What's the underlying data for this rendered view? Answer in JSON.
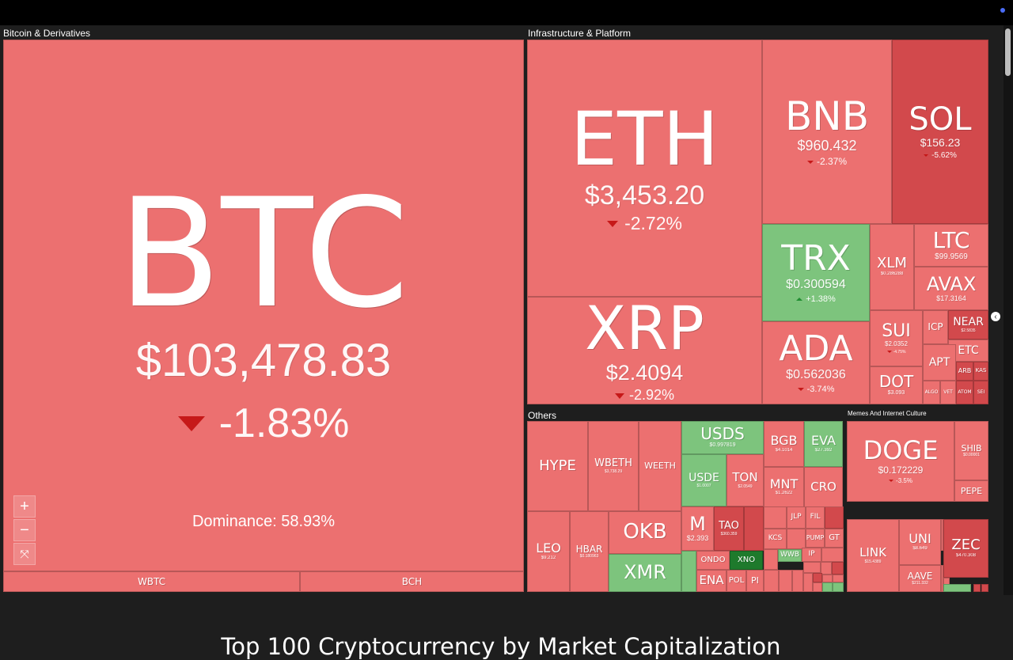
{
  "page": {
    "title": "Top 100 Cryptocurrency by Market Capitalization",
    "dominance_label": "Dominance: 58.93%"
  },
  "colors": {
    "background": "#1e1e1e",
    "down": "#ec7070",
    "down_strong": "#d2494c",
    "up": "#7dc47d",
    "up_strong": "#1e7a2c",
    "arrow_down": "#c41414",
    "arrow_up": "#1c8a2e"
  },
  "controls": {
    "zoom_in": "+",
    "zoom_out": "−",
    "reset": "⤧",
    "collapse": "‹"
  },
  "chart_data": {
    "type": "heatmap",
    "title": "",
    "metric": "market cap sized tiles, colored by 24h change",
    "sectors": [
      {
        "name": "Bitcoin & Derivatives",
        "items": [
          {
            "symbol": "BTC",
            "price": "$103,478.83",
            "change": "-1.83%",
            "value": -1.83
          },
          {
            "symbol": "WBTC",
            "price": "",
            "change": "",
            "value": null
          },
          {
            "symbol": "BCH",
            "price": "",
            "change": "",
            "value": null
          }
        ]
      },
      {
        "name": "Infrastructure & Platform",
        "items": [
          {
            "symbol": "ETH",
            "price": "$3,453.20",
            "change": "-2.72%",
            "value": -2.72
          },
          {
            "symbol": "XRP",
            "price": "$2.4094",
            "change": "-2.92%",
            "value": -2.92
          },
          {
            "symbol": "BNB",
            "price": "$960.432",
            "change": "-2.37%",
            "value": -2.37
          },
          {
            "symbol": "SOL",
            "price": "$156.23",
            "change": "-5.62%",
            "value": -5.62
          },
          {
            "symbol": "TRX",
            "price": "$0.300594",
            "change": "+1.38%",
            "value": 1.38
          },
          {
            "symbol": "ADA",
            "price": "$0.562036",
            "change": "-3.74%",
            "value": -3.74
          },
          {
            "symbol": "XLM",
            "price": "$0.286288",
            "change": "",
            "value": null
          },
          {
            "symbol": "LTC",
            "price": "$99.9569",
            "change": "",
            "value": null
          },
          {
            "symbol": "AVAX",
            "price": "$17.3164",
            "change": "",
            "value": null
          },
          {
            "symbol": "SUI",
            "price": "$2.0352",
            "change": "-4.75%",
            "value": -4.75
          },
          {
            "symbol": "ICP",
            "price": "",
            "change": "",
            "value": null
          },
          {
            "symbol": "NEAR",
            "price": "$2.5835",
            "change": "",
            "value": null
          },
          {
            "symbol": "ETC",
            "price": "",
            "change": "",
            "value": null
          },
          {
            "symbol": "DOT",
            "price": "$3.093",
            "change": "",
            "value": null
          },
          {
            "symbol": "APT",
            "price": "",
            "change": "",
            "value": null
          },
          {
            "symbol": "ARB",
            "price": "",
            "change": "",
            "value": null
          },
          {
            "symbol": "KAS",
            "price": "",
            "change": "",
            "value": null
          },
          {
            "symbol": "ALGO",
            "price": "",
            "change": "",
            "value": null
          },
          {
            "symbol": "VET",
            "price": "",
            "change": "",
            "value": null
          },
          {
            "symbol": "ATOM",
            "price": "",
            "change": "",
            "value": null
          },
          {
            "symbol": "SEI",
            "price": "",
            "change": "",
            "value": null
          }
        ]
      },
      {
        "name": "Others",
        "items": [
          {
            "symbol": "HYPE",
            "price": "",
            "change": "",
            "value": null
          },
          {
            "symbol": "WBETH",
            "price": "$3,738.29",
            "change": "",
            "value": null
          },
          {
            "symbol": "WEETH",
            "price": "",
            "change": "",
            "value": null
          },
          {
            "symbol": "USDS",
            "price": "$0.997819",
            "change": "",
            "value": null
          },
          {
            "symbol": "BGB",
            "price": "$4.1014",
            "change": "",
            "value": null
          },
          {
            "symbol": "EVA",
            "price": "$27.392",
            "change": "",
            "value": null
          },
          {
            "symbol": "USDE",
            "price": "$1.0007",
            "change": "",
            "value": null
          },
          {
            "symbol": "TON",
            "price": "$2.0549",
            "change": "",
            "value": null
          },
          {
            "symbol": "MNT",
            "price": "$1.2622",
            "change": "",
            "value": null
          },
          {
            "symbol": "CRO",
            "price": "",
            "change": "",
            "value": null
          },
          {
            "symbol": "LEO",
            "price": "$9.212",
            "change": "",
            "value": null
          },
          {
            "symbol": "HBAR",
            "price": "$0.180963",
            "change": "",
            "value": null
          },
          {
            "symbol": "OKB",
            "price": "",
            "change": "",
            "value": null
          },
          {
            "symbol": "XMR",
            "price": "",
            "change": "",
            "value": null
          },
          {
            "symbol": "M",
            "price": "$2.393",
            "change": "",
            "value": null
          },
          {
            "symbol": "TAO",
            "price": "$360.359",
            "change": "",
            "value": null
          },
          {
            "symbol": "ONDO",
            "price": "",
            "change": "",
            "value": null
          },
          {
            "symbol": "XNO",
            "price": "",
            "change": "",
            "value": null
          },
          {
            "symbol": "ENA",
            "price": "",
            "change": "",
            "value": null
          },
          {
            "symbol": "POL",
            "price": "",
            "change": "",
            "value": null
          },
          {
            "symbol": "PI",
            "price": "",
            "change": "",
            "value": null
          },
          {
            "symbol": "KCS",
            "price": "",
            "change": "",
            "value": null
          },
          {
            "symbol": "JLP",
            "price": "",
            "change": "",
            "value": null
          },
          {
            "symbol": "FIL",
            "price": "",
            "change": "",
            "value": null
          },
          {
            "symbol": "WWB",
            "price": "",
            "change": "",
            "value": null
          },
          {
            "symbol": "PUMP",
            "price": "",
            "change": "",
            "value": null
          },
          {
            "symbol": "GT",
            "price": "",
            "change": "",
            "value": null
          },
          {
            "symbol": "IP",
            "price": "",
            "change": "",
            "value": null
          }
        ]
      },
      {
        "name": "Memes And Internet Culture",
        "items": [
          {
            "symbol": "DOGE",
            "price": "$0.172229",
            "change": "-3.5%",
            "value": -3.5
          },
          {
            "symbol": "SHIB",
            "price": "$0.00001",
            "change": "",
            "value": null
          },
          {
            "symbol": "PEPE",
            "price": "",
            "change": "",
            "value": null
          },
          {
            "symbol": "LINK",
            "price": "$15.4389",
            "change": "",
            "value": null
          },
          {
            "symbol": "UNI",
            "price": "$8.649",
            "change": "",
            "value": null
          },
          {
            "symbol": "AAVE",
            "price": "$211.332",
            "change": "",
            "value": null
          },
          {
            "symbol": "ZEC",
            "price": "$470.308",
            "change": "",
            "value": null
          }
        ]
      }
    ]
  }
}
